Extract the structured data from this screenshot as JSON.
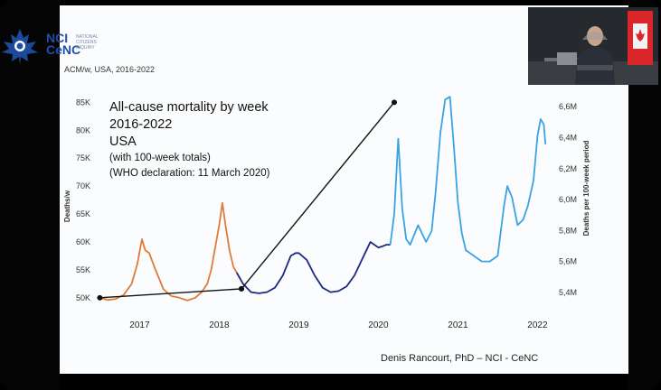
{
  "logo": {
    "text_line1": "NCI",
    "text_line2": "CeNC",
    "small_text": "NATIONAL CITIZENS INQUIRY"
  },
  "chart_subtitle": "ACM/w, USA, 2016-2022",
  "title": {
    "line1": "All-cause mortality by week",
    "line2": "2016-2022",
    "line3": "USA",
    "line4": "(with 100-week totals)",
    "line5": "(WHO declaration: 11 March 2020)"
  },
  "author": "Denis Rancourt, PhD  –  NCI - CeNC",
  "colors": {
    "pre_covid_2016_2018": "#e07c3a",
    "covid_2018_2020": "#1d2a80",
    "post_2020": "#3aa3e3",
    "background": "#fafcfd"
  },
  "chart_data": {
    "type": "line",
    "ylabel": "Deaths/w",
    "y2label": "Deaths per 100-week period",
    "ylim": [
      49000,
      87000
    ],
    "y_ticks": [
      "50K",
      "55K",
      "60K",
      "65K",
      "70K",
      "75K",
      "80K",
      "85K"
    ],
    "y_tick_values": [
      50000,
      55000,
      60000,
      65000,
      70000,
      75000,
      80000,
      85000
    ],
    "y2_ticks": [
      "5,4M",
      "5,6M",
      "5,8M",
      "6,0M",
      "6,2M",
      "6,4M",
      "6,6M"
    ],
    "y2_tick_values": [
      5400000,
      5600000,
      5800000,
      6000000,
      6200000,
      6400000,
      6600000
    ],
    "y2lim": [
      5330000,
      6700000
    ],
    "x_ticks": [
      "2017",
      "2018",
      "2019",
      "2020",
      "2021",
      "2022"
    ],
    "x_tick_values": [
      2017,
      2018,
      2019,
      2020,
      2021,
      2022
    ],
    "xlim": [
      2016.45,
      2022.2
    ],
    "series": [
      {
        "color": "#e07c3a",
        "x": [
          2016.5,
          2016.6,
          2016.7,
          2016.8,
          2016.9,
          2016.97,
          2017.03,
          2017.07,
          2017.12,
          2017.2,
          2017.3,
          2017.4,
          2017.5,
          2017.6,
          2017.7,
          2017.78,
          2017.85,
          2017.9,
          2017.95,
          2018.0,
          2018.04,
          2018.08,
          2018.13,
          2018.18,
          2018.22
        ],
        "y": [
          50000,
          49600,
          49800,
          50500,
          52500,
          56000,
          60500,
          58500,
          58000,
          55000,
          51500,
          50300,
          50000,
          49500,
          50000,
          51000,
          52500,
          55000,
          59000,
          63000,
          67000,
          63000,
          58500,
          55500,
          54500
        ]
      },
      {
        "color": "#1d2a80",
        "x": [
          2018.22,
          2018.3,
          2018.4,
          2018.5,
          2018.6,
          2018.7,
          2018.8,
          2018.9,
          2018.96,
          2019.0,
          2019.1,
          2019.2,
          2019.3,
          2019.4,
          2019.5,
          2019.6,
          2019.7,
          2019.8,
          2019.85,
          2019.9,
          2019.95,
          2020.0,
          2020.05,
          2020.1,
          2020.15
        ],
        "y": [
          54500,
          52500,
          51000,
          50800,
          51000,
          51800,
          54000,
          57500,
          58000,
          58000,
          56800,
          54000,
          51800,
          51000,
          51200,
          52000,
          54000,
          57000,
          58500,
          60000,
          59500,
          59000,
          59200,
          59500,
          59500
        ]
      },
      {
        "color": "#3aa3e3",
        "x": [
          2020.15,
          2020.2,
          2020.25,
          2020.3,
          2020.35,
          2020.4,
          2020.5,
          2020.6,
          2020.67,
          2020.72,
          2020.78,
          2020.84,
          2020.9,
          2020.95,
          2021.0,
          2021.05,
          2021.1,
          2021.15,
          2021.2,
          2021.3,
          2021.4,
          2021.5,
          2021.58,
          2021.62,
          2021.68,
          2021.75,
          2021.82,
          2021.88,
          2021.95,
          2022.0,
          2022.04,
          2022.08,
          2022.1
        ],
        "y": [
          59500,
          65000,
          78500,
          66000,
          60500,
          59500,
          63000,
          60000,
          62000,
          69000,
          79500,
          85500,
          86000,
          77000,
          67000,
          61500,
          58500,
          58000,
          57500,
          56500,
          56500,
          57500,
          66500,
          70000,
          68000,
          63000,
          64000,
          66500,
          71000,
          79000,
          82000,
          81000,
          77500
        ]
      }
    ],
    "annotation_lines": [
      {
        "x": [
          2016.5,
          2018.28
        ],
        "y": [
          50000,
          51600
        ]
      },
      {
        "x": [
          2018.28,
          2020.2
        ],
        "y": [
          51600,
          85000
        ]
      }
    ]
  }
}
